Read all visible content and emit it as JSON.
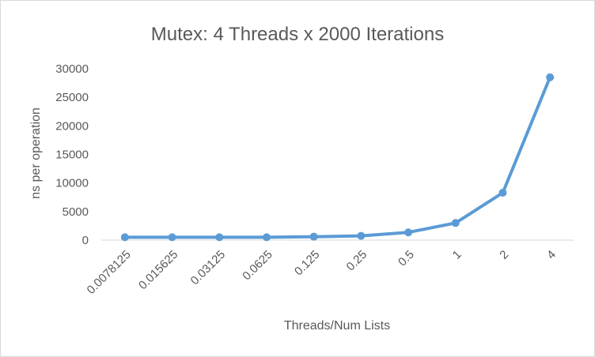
{
  "chart_data": {
    "type": "line",
    "title": "Mutex: 4 Threads x 2000  Iterations",
    "xlabel": "Threads/Num Lists",
    "ylabel": "ns per operation",
    "categories": [
      "0.0078125",
      "0.015625",
      "0.03125",
      "0.0625",
      "0.125",
      "0.25",
      "0.5",
      "1",
      "2",
      "4"
    ],
    "series": [
      {
        "values": [
          500,
          500,
          500,
          500,
          600,
          750,
          1350,
          3000,
          8300,
          28500
        ]
      }
    ],
    "ylim": [
      0,
      30000
    ],
    "yticks": [
      0,
      5000,
      10000,
      15000,
      20000,
      25000,
      30000
    ],
    "grid": false,
    "legend": "none",
    "colors": {
      "line": "#5b9bd5",
      "axis": "#d9d9d9",
      "text": "#595959"
    }
  }
}
